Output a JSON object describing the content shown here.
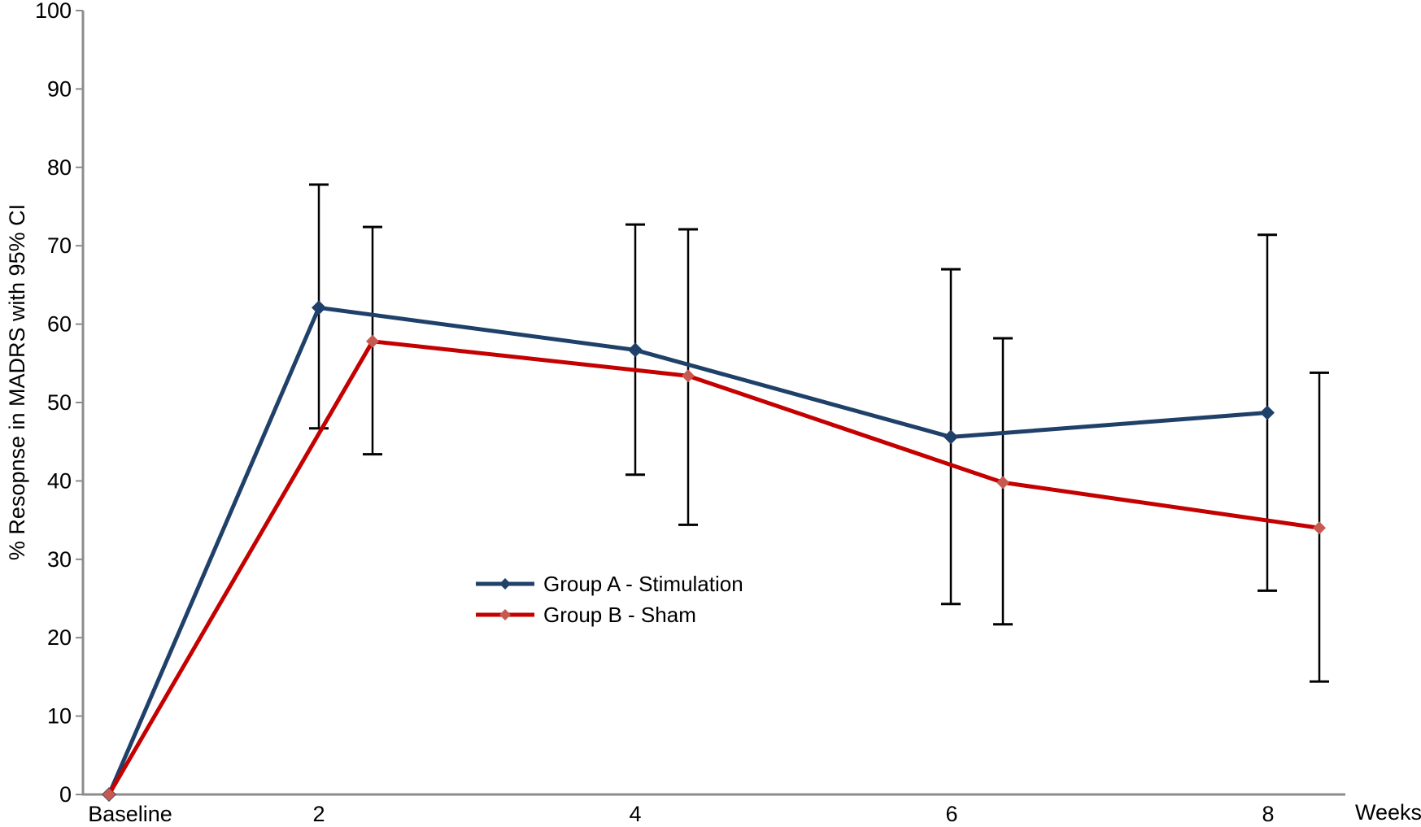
{
  "chart_data": {
    "type": "line",
    "title": "",
    "xlabel": "Weeks",
    "ylabel": "% Resopnse in MADRS with 95% CI",
    "categories": [
      "Baseline",
      "2",
      "4",
      "6",
      "8"
    ],
    "x_axis": {
      "unit_label": "Weeks",
      "tick_labels": [
        "Baseline",
        "2",
        "4",
        "6",
        "8"
      ]
    },
    "y_axis": {
      "min": 0,
      "max": 100,
      "tick_step": 10,
      "ticks": [
        0,
        10,
        20,
        30,
        40,
        50,
        60,
        70,
        80,
        90,
        100
      ]
    },
    "ylim": [
      0,
      100
    ],
    "grid": false,
    "axis_color": "#8C8C8C",
    "text_color": "#000000",
    "background": "#FFFFFF",
    "error_bars": {
      "color": "#000000",
      "meaning": "95% CI"
    },
    "series": [
      {
        "name": "Group A - Stimulation",
        "line_color": "#1F4068",
        "marker_color": "#1F4068",
        "marker": "diamond",
        "values": [
          0,
          62.1,
          56.7,
          45.6,
          48.7
        ],
        "ci_low": [
          null,
          46.7,
          40.8,
          24.3,
          26.0
        ],
        "ci_high": [
          null,
          77.8,
          72.7,
          67.0,
          71.4
        ]
      },
      {
        "name": "Group B - Sham",
        "line_color": "#C40000",
        "marker_color": "#C65A50",
        "marker": "diamond",
        "values": [
          0,
          57.8,
          53.4,
          39.8,
          34.0
        ],
        "ci_low": [
          null,
          43.4,
          34.4,
          21.7,
          14.4
        ],
        "ci_high": [
          null,
          72.4,
          72.1,
          58.2,
          53.8
        ]
      }
    ],
    "legend": {
      "position": "inside-bottom-center",
      "items": [
        {
          "label": "Group A - Stimulation"
        },
        {
          "label": "Group B - Sham"
        }
      ]
    }
  }
}
